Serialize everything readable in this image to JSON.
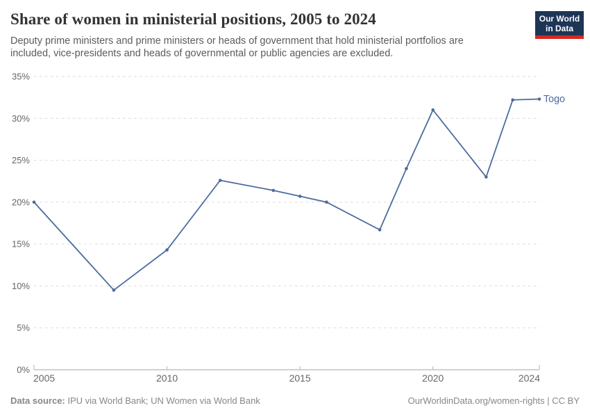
{
  "header": {
    "title": "Share of women in ministerial positions, 2005 to 2024",
    "subtitle": "Deputy prime ministers and prime ministers or heads of government that hold ministerial portfolios are included, vice-presidents and heads of governmental or public agencies are excluded.",
    "logo": {
      "line1": "Our World",
      "line2": "in Data"
    }
  },
  "chart_data": {
    "type": "line",
    "title": "Share of women in ministerial positions, 2005 to 2024",
    "x": [
      2005,
      2008,
      2010,
      2012,
      2014,
      2015,
      2016,
      2018,
      2019,
      2020,
      2022,
      2023,
      2024
    ],
    "series": [
      {
        "name": "Togo",
        "color": "#4c6b9e",
        "values": [
          20,
          9.5,
          14.3,
          22.6,
          21.4,
          20.7,
          20,
          16.7,
          24,
          31,
          23,
          32.2,
          32.3
        ]
      }
    ],
    "xlabel": "",
    "ylabel": "",
    "xlim": [
      2005,
      2024
    ],
    "ylim": [
      0,
      35
    ],
    "x_ticks": [
      2005,
      2010,
      2015,
      2020,
      2024
    ],
    "y_ticks": [
      0,
      5,
      10,
      15,
      20,
      25,
      30,
      35
    ],
    "y_tick_suffix": "%",
    "grid": "horizontal-dashed",
    "legend_position": "end-of-line",
    "end_label": "Togo"
  },
  "colors": {
    "line": "#4c6b9e",
    "grid": "#d9d9d9",
    "axis": "#a3a3a3",
    "tick": "#b5b5b5",
    "tick_label": "#666666"
  },
  "footer": {
    "source_label": "Data source:",
    "source_text": "IPU via World Bank; UN Women via World Bank",
    "credit": "OurWorldinData.org/women-rights | CC BY"
  }
}
